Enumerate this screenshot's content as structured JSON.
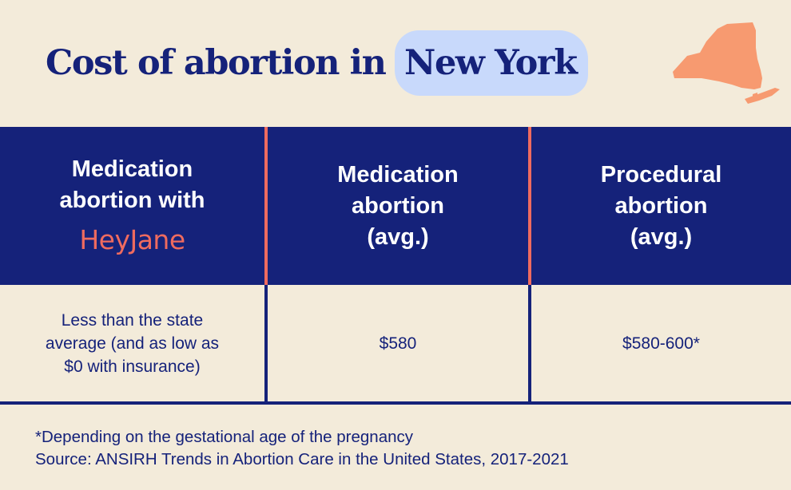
{
  "title": {
    "prefix": "Cost of abortion in",
    "highlight": "New York"
  },
  "table": {
    "headers": [
      {
        "lines": "Medication\nabortion with",
        "brand": "HeyJane"
      },
      {
        "lines": "Medication\nabortion\n(avg.)"
      },
      {
        "lines": "Procedural\nabortion\n(avg.)"
      }
    ],
    "row": [
      "Less than the state\naverage (and as low as\n$0 with insurance)",
      "$580",
      "$580-600*"
    ]
  },
  "footnote": {
    "line1": "*Depending on the gestational age of the pregnancy",
    "line2": "Source: ANSIRH Trends in Abortion Care in the United States, 2017-2021"
  },
  "colors": {
    "background": "#f3ebda",
    "navy": "#15227a",
    "coral": "#ef6b5f",
    "highlight": "#c8d9fb",
    "map": "#f79a70"
  }
}
